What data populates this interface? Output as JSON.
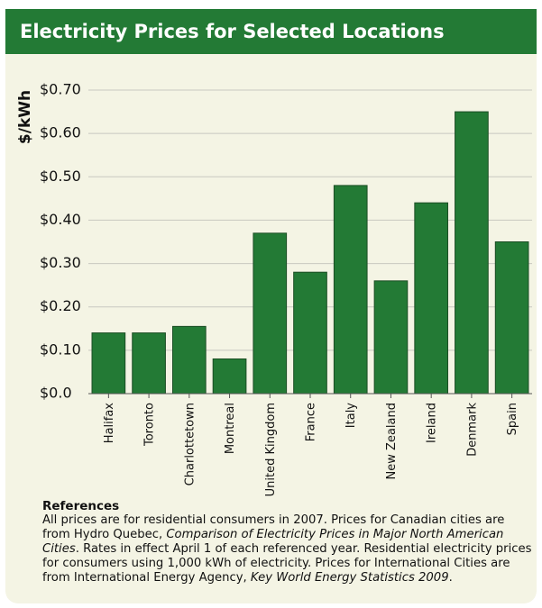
{
  "chart_data": {
    "type": "bar",
    "title": "Electricity Prices for Selected Locations",
    "y_label": "$/kWh",
    "categories": [
      "Halifax",
      "Toronto",
      "Charlottetown",
      "Montreal",
      "United Kingdom",
      "France",
      "Italy",
      "New Zealand",
      "Ireland",
      "Denmark",
      "Spain"
    ],
    "values": [
      0.14,
      0.14,
      0.155,
      0.08,
      0.37,
      0.28,
      0.48,
      0.26,
      0.44,
      0.65,
      0.35
    ],
    "color": "#237a35",
    "ylim": [
      0,
      0.7
    ],
    "yticks": [
      {
        "value": 0,
        "label": "$0.0"
      },
      {
        "value": 0.1,
        "label": "$0.10"
      },
      {
        "value": 0.2,
        "label": "$0.20"
      },
      {
        "value": 0.3,
        "label": "$0.30"
      },
      {
        "value": 0.4,
        "label": "$0.40"
      },
      {
        "value": 0.5,
        "label": "$0.50"
      },
      {
        "value": 0.6,
        "label": "$0.60"
      },
      {
        "value": 0.7,
        "label": "$0.70"
      }
    ],
    "grid": true
  },
  "references": {
    "title": "References",
    "parts": [
      {
        "text": "All prices are for residential consumers in 2007. Prices for Canadian cities are from Hydro Quebec, ",
        "italic": false
      },
      {
        "text": "Comparison of Electricity Prices in Major North American Cities",
        "italic": true
      },
      {
        "text": ". Rates in effect April 1 of each referenced year. Residential electricity prices for consumers using 1,000 kWh of electricity. Prices for International Cities are from International Energy Agency, ",
        "italic": false
      },
      {
        "text": "Key World Energy Statistics 2009",
        "italic": true
      },
      {
        "text": ".",
        "italic": false
      }
    ]
  }
}
